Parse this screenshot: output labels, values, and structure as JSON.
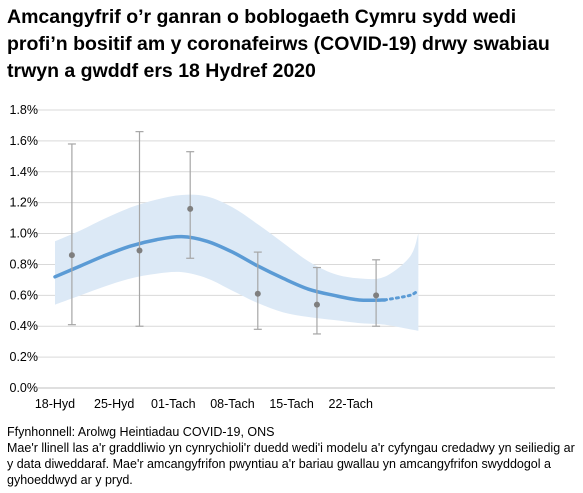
{
  "title": "Amcangyfrif o’r ganran o boblogaeth Cymru sydd wedi profi’n bositif am y coronafeirws (COVID-19) drwy swabiau trwyn a gwddf ers 18 Hydref 2020",
  "source": "Ffynhonnell: Arolwg Heintiadau COVID-19, ONS",
  "note": "Mae'r llinell las a'r graddliwio yn cynrychioli'r duedd wedi'i modelu a'r cyfyngau credadwy yn seiliedig ar y data diweddaraf. Mae'r amcangyfrifon pwyntiau a'r bariau gwallau yn amcangyfrifon swyddogol a gyhoeddwyd ar y pryd.",
  "colors": {
    "trend": "#5b9bd5",
    "band": "#dce9f6",
    "points": "#7f7f7f",
    "errorbars": "#a6a6a6",
    "grid": "#d9d9d9"
  },
  "chart_data": {
    "type": "line",
    "title": "",
    "xlabel": "",
    "ylabel": "",
    "x_ticks": [
      "18-Hyd",
      "25-Hyd",
      "01-Tach",
      "08-Tach",
      "15-Tach",
      "22-Tach"
    ],
    "y_ticks": [
      "0.0%",
      "0.2%",
      "0.4%",
      "0.6%",
      "0.8%",
      "1.0%",
      "1.2%",
      "1.4%",
      "1.6%",
      "1.8%"
    ],
    "ylim": [
      0,
      1.8
    ],
    "xlim": [
      0,
      43
    ],
    "grid": "horizontal",
    "modelled_trend": {
      "x": [
        0,
        3,
        6,
        9,
        12,
        15,
        18,
        21,
        24,
        27,
        30,
        33,
        36,
        39,
        42,
        43
      ],
      "y": [
        0.72,
        0.79,
        0.86,
        0.92,
        0.96,
        0.98,
        0.95,
        0.88,
        0.79,
        0.71,
        0.64,
        0.6,
        0.57,
        0.57,
        0.6,
        0.635
      ],
      "dotted_from_x": 40
    },
    "credible_interval": {
      "x": [
        0,
        3,
        6,
        9,
        12,
        15,
        18,
        21,
        24,
        27,
        30,
        33,
        36,
        39,
        42,
        43
      ],
      "lower": [
        0.54,
        0.6,
        0.66,
        0.71,
        0.74,
        0.75,
        0.71,
        0.63,
        0.55,
        0.49,
        0.46,
        0.44,
        0.42,
        0.41,
        0.38,
        0.37
      ],
      "upper": [
        0.95,
        1.02,
        1.1,
        1.17,
        1.22,
        1.25,
        1.24,
        1.17,
        1.06,
        0.94,
        0.82,
        0.74,
        0.71,
        0.72,
        0.85,
        1.0
      ]
    },
    "official_estimates": [
      {
        "x": 2,
        "value": 0.86,
        "lower": 0.41,
        "upper": 1.58
      },
      {
        "x": 10,
        "value": 0.89,
        "lower": 0.4,
        "upper": 1.66
      },
      {
        "x": 16,
        "value": 1.16,
        "lower": 0.84,
        "upper": 1.53
      },
      {
        "x": 24,
        "value": 0.61,
        "lower": 0.38,
        "upper": 0.88
      },
      {
        "x": 31,
        "value": 0.54,
        "lower": 0.35,
        "upper": 0.78
      },
      {
        "x": 38,
        "value": 0.6,
        "lower": 0.4,
        "upper": 0.83
      }
    ]
  }
}
